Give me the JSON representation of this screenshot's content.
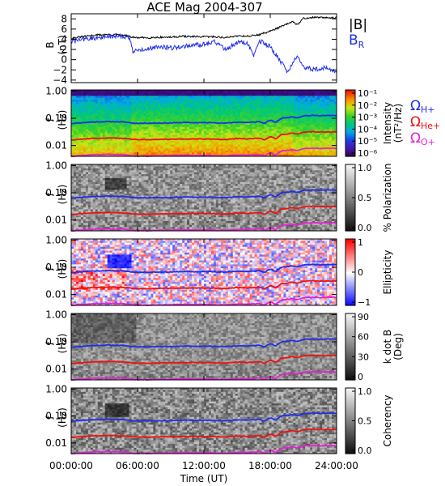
{
  "title": "ACE Mag 2004-307",
  "colors": {
    "blue": "#1f2ee8",
    "red": "#ee1111",
    "magenta": "#e61fd6",
    "black": "#000000"
  },
  "x_axis": {
    "ticks": [
      "00:00:00",
      "06:00:00",
      "12:00:00",
      "18:00:00",
      "24:00:00"
    ],
    "tick_hours": [
      0,
      6,
      12,
      18,
      24
    ],
    "label": "Time (UT)",
    "range_hours": [
      0,
      24
    ]
  },
  "chart_data": [
    {
      "type": "line",
      "panel": "magnetic_field",
      "ylabel": "B",
      "yunit": "(nT)",
      "ylim": [
        -4.5,
        9
      ],
      "yticks": [
        "8",
        "6",
        "4",
        "2",
        "0",
        "−2",
        "−4"
      ],
      "ytick_values": [
        8,
        6,
        4,
        2,
        0,
        -2,
        -4
      ],
      "legend": [
        "|B|",
        "B"
      ],
      "legend_sub": [
        "",
        "R"
      ],
      "series": [
        {
          "name": "|B|",
          "color": "black",
          "x": [
            0,
            1,
            2,
            3,
            4,
            5,
            5.5,
            6,
            7,
            8,
            9,
            10,
            11,
            12,
            13,
            14,
            15,
            16,
            17,
            18,
            19,
            20,
            20.5,
            21,
            22,
            23,
            24
          ],
          "y": [
            4.2,
            4.5,
            4.8,
            4.9,
            4.9,
            4.7,
            4.4,
            4.3,
            4.3,
            4.4,
            4.4,
            4.6,
            4.5,
            4.5,
            4.5,
            4.3,
            4.7,
            4.6,
            4.9,
            5.6,
            6.5,
            7.4,
            6.9,
            8.1,
            8.3,
            8.2,
            8.3
          ]
        },
        {
          "name": "B_R",
          "color": "blue",
          "x": [
            0,
            1,
            2,
            3,
            4,
            5,
            5.3,
            5.6,
            6,
            7,
            8,
            9,
            10,
            11,
            12,
            13,
            14,
            15,
            16,
            16.5,
            17,
            18,
            19,
            19.5,
            20,
            20.5,
            21,
            22,
            23,
            24
          ],
          "y": [
            3.5,
            4.0,
            4.2,
            4.4,
            4.6,
            4.5,
            4.2,
            1.5,
            1.8,
            2.2,
            2.6,
            2.3,
            2.6,
            2.8,
            3.0,
            3.5,
            2.0,
            3.4,
            3.2,
            0.5,
            3.8,
            2.5,
            -0.5,
            -2.5,
            -1.0,
            1.0,
            -1.5,
            -2.0,
            -1.6,
            -2.6
          ]
        }
      ]
    },
    {
      "type": "heatmap",
      "panel": "intensity",
      "ylabel": "f",
      "yunit": "(Hz)",
      "yscale": "log",
      "ylim": [
        0.004,
        1.1
      ],
      "yticks": [
        "1.00",
        "0.10",
        "0.01"
      ],
      "ytick_values": [
        1.0,
        0.1,
        0.01
      ],
      "colorscale": "rainbow",
      "colorbar_label": "Intensity",
      "colorbar_unit": "(nT²/Hz)",
      "colorbar_ticks": [
        "10⁻¹",
        "10⁻²",
        "10⁻³",
        "10⁻⁴",
        "10⁻⁵",
        "10⁻⁶"
      ],
      "colorbar_range_log10": [
        -6.5,
        -0.5
      ],
      "side_labels": [
        {
          "symbol": "Ω",
          "sub": "H+",
          "color": "blue"
        },
        {
          "symbol": "Ω",
          "sub": "He+",
          "color": "red"
        },
        {
          "symbol": "Ω",
          "sub": "O+",
          "color": "magenta"
        }
      ]
    },
    {
      "type": "heatmap",
      "panel": "polarization",
      "ylabel": "f",
      "yunit": "(Hz)",
      "yscale": "log",
      "yticks": [
        "1.00",
        "0.10",
        "0.01"
      ],
      "ytick_values": [
        1.0,
        0.1,
        0.01
      ],
      "colorscale": "gray",
      "colorbar_label": "% Polarization",
      "colorbar_ticks": [
        "1.0",
        "0.5",
        "0.0"
      ],
      "colorbar_range": [
        0,
        1
      ]
    },
    {
      "type": "heatmap",
      "panel": "ellipticity",
      "ylabel": "f",
      "yunit": "(Hz)",
      "yscale": "log",
      "yticks": [
        "1.00",
        "0.10",
        "0.01"
      ],
      "ytick_values": [
        1.0,
        0.1,
        0.01
      ],
      "colorscale": "bluewhitered",
      "colorbar_label": "Ellipticity",
      "colorbar_ticks": [
        "1",
        "0",
        "−1"
      ],
      "colorbar_range": [
        -1,
        1
      ]
    },
    {
      "type": "heatmap",
      "panel": "wave_normal_angle",
      "ylabel": "f",
      "yunit": "(Hz)",
      "yscale": "log",
      "yticks": [
        "1.00",
        "0.10",
        "0.01"
      ],
      "ytick_values": [
        1.0,
        0.1,
        0.01
      ],
      "colorscale": "gray",
      "colorbar_label": "k dot B",
      "colorbar_unit": "(Deg)",
      "colorbar_ticks": [
        "90",
        "60",
        "30",
        "0"
      ],
      "colorbar_range": [
        0,
        90
      ]
    },
    {
      "type": "heatmap",
      "panel": "coherency",
      "ylabel": "f",
      "yunit": "(Hz)",
      "yscale": "log",
      "yticks": [
        "1.00",
        "0.10",
        "0.01"
      ],
      "ytick_values": [
        1.0,
        0.1,
        0.01
      ],
      "colorscale": "gray",
      "colorbar_label": "Coherency",
      "colorbar_ticks": [
        "1.0",
        "0.5",
        "0.0"
      ],
      "colorbar_range": [
        0,
        1
      ]
    }
  ],
  "gyrofrequency_lines": [
    {
      "name": "Ω H+",
      "color": "blue",
      "x": [
        0,
        1,
        2,
        3,
        4,
        5,
        5.5,
        6,
        7,
        8,
        9,
        10,
        11,
        12,
        13,
        14,
        15,
        16,
        17,
        17.5,
        18,
        18.5,
        19,
        20,
        20.5,
        21,
        22,
        23,
        24
      ],
      "y": [
        0.064,
        0.069,
        0.073,
        0.075,
        0.075,
        0.072,
        0.067,
        0.066,
        0.066,
        0.067,
        0.067,
        0.07,
        0.069,
        0.069,
        0.069,
        0.066,
        0.072,
        0.07,
        0.075,
        0.065,
        0.085,
        0.07,
        0.099,
        0.113,
        0.105,
        0.124,
        0.127,
        0.125,
        0.127
      ]
    },
    {
      "name": "Ω He+",
      "color": "red",
      "x": [
        0,
        1,
        2,
        3,
        4,
        5,
        5.5,
        6,
        7,
        8,
        9,
        10,
        11,
        12,
        13,
        14,
        15,
        16,
        17,
        17.5,
        18,
        18.5,
        19,
        20,
        20.5,
        21,
        22,
        23,
        24
      ],
      "y": [
        0.016,
        0.0172,
        0.0183,
        0.0187,
        0.0187,
        0.018,
        0.0168,
        0.0165,
        0.0165,
        0.0168,
        0.0168,
        0.0175,
        0.0172,
        0.0172,
        0.0172,
        0.0165,
        0.018,
        0.0175,
        0.0187,
        0.0162,
        0.0213,
        0.0175,
        0.0248,
        0.0283,
        0.0263,
        0.031,
        0.0318,
        0.0313,
        0.0318
      ]
    },
    {
      "name": "Ω O+",
      "color": "magenta",
      "x": [
        0,
        1,
        2,
        3,
        4,
        5,
        5.5,
        6,
        7,
        8,
        9,
        10,
        11,
        12,
        13,
        14,
        15,
        16,
        17,
        17.5,
        18,
        18.5,
        19,
        20,
        20.5,
        21,
        22,
        23,
        24
      ],
      "y": [
        0.004,
        0.0043,
        0.0046,
        0.0047,
        0.0047,
        0.0045,
        0.0042,
        0.0041,
        0.0041,
        0.0042,
        0.0042,
        0.0044,
        0.0043,
        0.0043,
        0.0043,
        0.0041,
        0.0045,
        0.0044,
        0.0047,
        0.0041,
        0.0053,
        0.0044,
        0.0062,
        0.0071,
        0.0066,
        0.0078,
        0.0079,
        0.0078,
        0.0079
      ]
    }
  ]
}
